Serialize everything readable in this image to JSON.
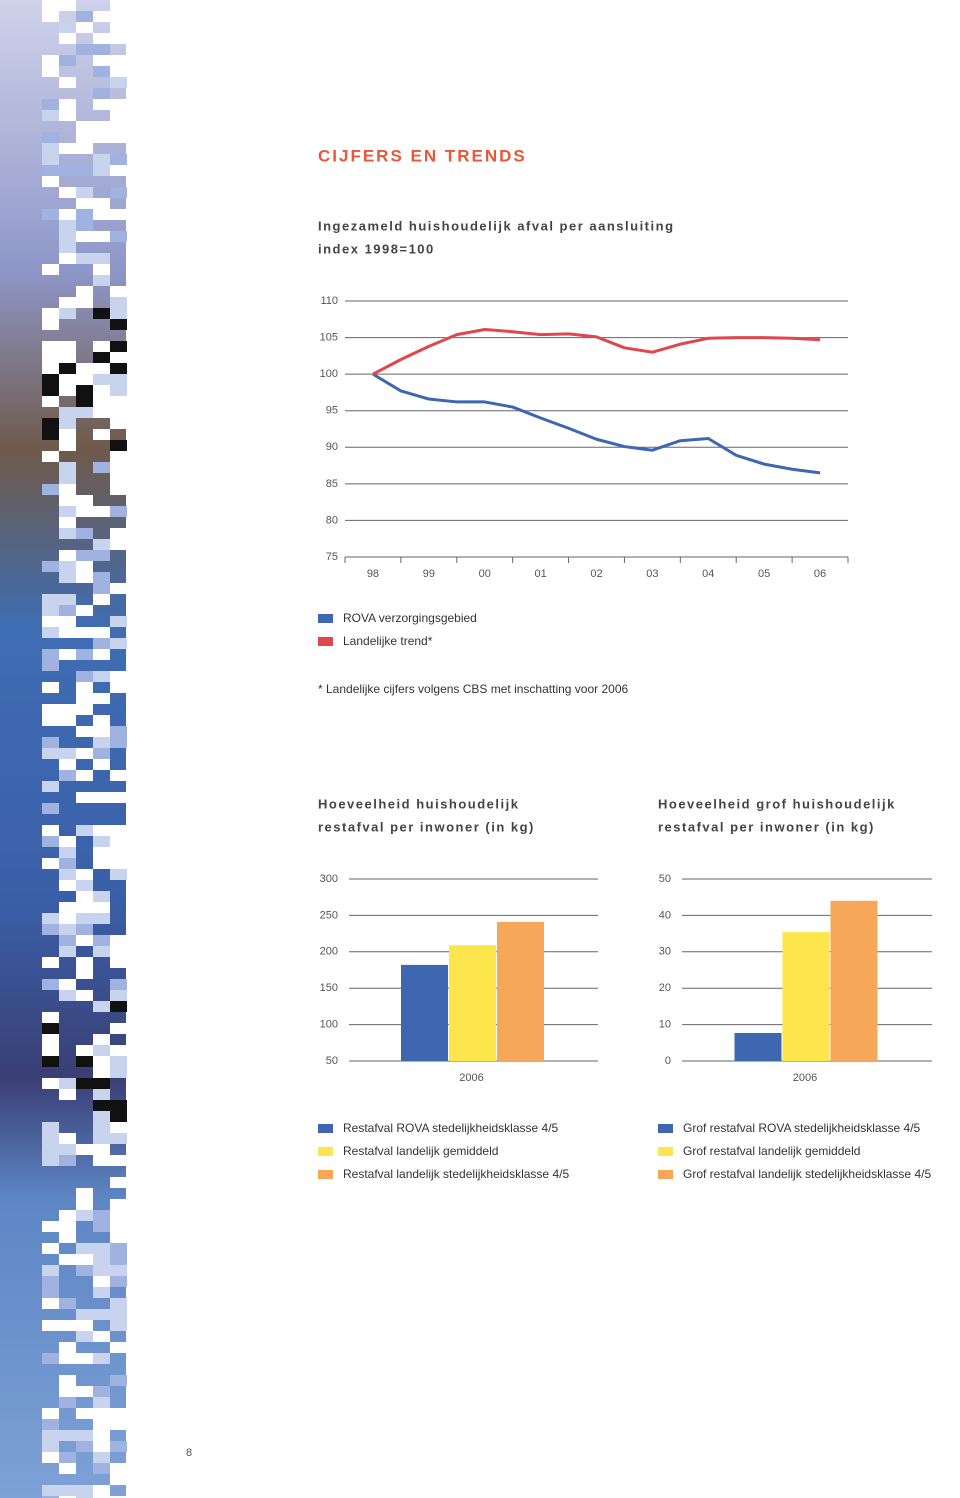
{
  "header": {
    "title": "CIJFERS EN TRENDS"
  },
  "page_number": "8",
  "chart_data": [
    {
      "type": "line",
      "title": "Ingezameld huishoudelijk afval per aansluiting",
      "subtitle": "index 1998=100",
      "x": [
        1998,
        1998.5,
        1999,
        1999.5,
        2000,
        2000.5,
        2001,
        2001.5,
        2002,
        2002.5,
        2003,
        2003.5,
        2004,
        2004.5,
        2005,
        2005.5,
        2006
      ],
      "xlim": [
        1997.5,
        2006.5
      ],
      "xticks": [
        {
          "value": 1998,
          "label": "98"
        },
        {
          "value": 1999,
          "label": "99"
        },
        {
          "value": 2000,
          "label": "00"
        },
        {
          "value": 2001,
          "label": "01"
        },
        {
          "value": 2002,
          "label": "02"
        },
        {
          "value": 2003,
          "label": "03"
        },
        {
          "value": 2004,
          "label": "04"
        },
        {
          "value": 2005,
          "label": "05"
        },
        {
          "value": 2006,
          "label": "06"
        }
      ],
      "ylim": [
        75,
        110
      ],
      "yticks": [
        75,
        80,
        85,
        90,
        95,
        100,
        105,
        110
      ],
      "grid": true,
      "series": [
        {
          "name": "ROVA verzorgingsgebied",
          "color": "#3f67b1",
          "values": [
            100,
            97.7,
            96.6,
            96.2,
            96.2,
            95.5,
            94,
            92.6,
            91.1,
            90.1,
            89.6,
            90.9,
            91.2,
            88.9,
            87.7,
            87,
            86.5
          ]
        },
        {
          "name": "Landelijke trend*",
          "color": "#e0474c",
          "values": [
            100,
            102,
            103.8,
            105.4,
            106.1,
            105.8,
            105.4,
            105.5,
            105.1,
            103.6,
            103,
            104.1,
            104.9,
            105,
            105,
            104.9,
            104.7
          ]
        }
      ],
      "footnote": "* Landelijke cijfers volgens CBS met inschatting voor 2006"
    },
    {
      "type": "bar",
      "title": [
        "Hoeveelheid huishoudelijk",
        "restafval per inwoner (in kg)"
      ],
      "categories": [
        "2006"
      ],
      "ylim": [
        50,
        300
      ],
      "yticks": [
        50,
        100,
        150,
        200,
        250,
        300
      ],
      "grid": true,
      "series": [
        {
          "name": "Restafval ROVA stedelijkheidsklasse 4/5",
          "color": "#3f67b1",
          "values": [
            182
          ]
        },
        {
          "name": "Restafval landelijk gemiddeld",
          "color": "#fde64b",
          "values": [
            209
          ]
        },
        {
          "name": "Restafval landelijk stedelijkheidsklasse 4/5",
          "color": "#f6a75a",
          "values": [
            241
          ]
        }
      ]
    },
    {
      "type": "bar",
      "title": [
        "Hoeveelheid grof huishoudelijk",
        "restafval per inwoner (in kg)"
      ],
      "categories": [
        "2006"
      ],
      "ylim": [
        0,
        50
      ],
      "yticks": [
        0,
        10,
        20,
        30,
        40,
        50
      ],
      "grid": true,
      "series": [
        {
          "name": "Grof restafval ROVA stedelijkheidsklasse 4/5",
          "color": "#3f67b1",
          "values": [
            7.7
          ]
        },
        {
          "name": "Grof restafval landelijk gemiddeld",
          "color": "#fde64b",
          "values": [
            35.4
          ]
        },
        {
          "name": "Grof restafval landelijk stedelijkheidsklasse 4/5",
          "color": "#f6a75a",
          "values": [
            44
          ]
        }
      ]
    }
  ]
}
